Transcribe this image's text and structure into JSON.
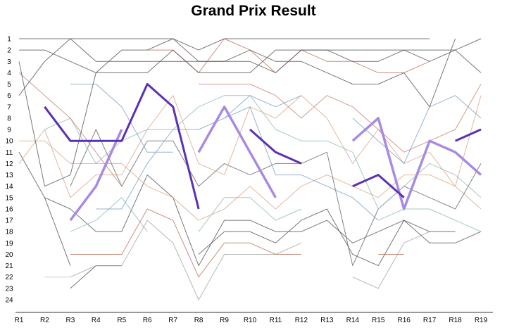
{
  "chart_data": {
    "type": "line",
    "title": "Grand Prix Result",
    "xlabel": "",
    "ylabel": "",
    "categories": [
      "R1",
      "R2",
      "R3",
      "R4",
      "R5",
      "R6",
      "R7",
      "R8",
      "R9",
      "R10",
      "R11",
      "R12",
      "R13",
      "R14",
      "R15",
      "R16",
      "R17",
      "R18",
      "R19"
    ],
    "y_ticks": [
      "1",
      "2",
      "3",
      "4",
      "5",
      "6",
      "7",
      "8",
      "9",
      "10",
      "11",
      "12",
      "13",
      "14",
      "15",
      "16",
      "17",
      "18",
      "19",
      "20",
      "21",
      "22",
      "23",
      "24"
    ],
    "ylim": [
      24,
      1
    ],
    "y_inverted": true,
    "grid": false,
    "legend": "none",
    "series": [
      {
        "color": "#5b31b5",
        "width": 3,
        "opacity": 1,
        "values": [
          null,
          7,
          10,
          10,
          10,
          5,
          7,
          16,
          null,
          9,
          11,
          12,
          null,
          14,
          13,
          15,
          null,
          10,
          9
        ]
      },
      {
        "color": "#a98ae3",
        "width": 3.5,
        "opacity": 1,
        "values": [
          null,
          null,
          17,
          14,
          9,
          null,
          null,
          11,
          7,
          11,
          15,
          null,
          null,
          10,
          8,
          16,
          10,
          11,
          13
        ]
      },
      {
        "color": "#555555",
        "width": 1,
        "opacity": 0.8,
        "values": [
          1,
          1,
          1,
          1,
          1,
          1,
          1,
          2,
          1,
          1,
          1,
          1,
          1,
          1,
          1,
          1,
          1,
          null,
          null
        ]
      },
      {
        "color": "#555555",
        "width": 1,
        "opacity": 0.8,
        "values": [
          2,
          2,
          3,
          4,
          4,
          4,
          2,
          4,
          4,
          4,
          2,
          2,
          2,
          2,
          2,
          2,
          3,
          2,
          1
        ]
      },
      {
        "color": "#555555",
        "width": 1,
        "opacity": 0.8,
        "values": [
          6,
          3,
          1,
          3,
          3,
          3,
          3,
          3,
          3,
          3,
          4,
          2,
          2,
          3,
          3,
          2,
          2,
          2,
          4
        ]
      },
      {
        "color": "#555555",
        "width": 1,
        "opacity": 0.8,
        "values": [
          3,
          14,
          13,
          4,
          2,
          2,
          1,
          3,
          3,
          2,
          3,
          3,
          4,
          5,
          5,
          4,
          7,
          1,
          null
        ]
      },
      {
        "color": "#c0705e",
        "width": 1,
        "opacity": 0.8,
        "values": [
          null,
          null,
          null,
          null,
          null,
          2,
          2,
          4,
          1,
          2,
          4,
          2,
          3,
          3,
          4,
          4,
          3,
          null,
          null
        ]
      },
      {
        "color": "#c0705e",
        "width": 1,
        "opacity": 0.7,
        "values": [
          4,
          6,
          8,
          11,
          14,
          null,
          null,
          5,
          5,
          5,
          6,
          8,
          6,
          7,
          9,
          11,
          10,
          9,
          5
        ]
      },
      {
        "color": "#7a9fc4",
        "width": 1,
        "opacity": 0.8,
        "values": [
          null,
          null,
          5,
          5,
          7,
          11,
          11,
          null,
          8,
          6,
          7,
          6,
          null,
          8,
          10,
          12,
          7,
          6,
          8
        ]
      },
      {
        "color": "#8fbab8",
        "width": 1,
        "opacity": 0.8,
        "values": [
          null,
          9,
          8,
          12,
          10,
          9,
          9,
          7,
          6,
          6,
          9,
          10,
          10,
          11,
          16,
          14,
          12,
          13,
          15
        ]
      },
      {
        "color": "#d9a68a",
        "width": 1,
        "opacity": 0.8,
        "values": [
          12,
          9,
          15,
          13,
          13,
          9,
          6,
          12,
          13,
          7,
          8,
          6,
          8,
          12,
          9,
          12,
          11,
          14,
          6
        ]
      },
      {
        "color": "#7a9fc4",
        "width": 1,
        "opacity": 0.8,
        "values": [
          null,
          null,
          null,
          16,
          16,
          12,
          9,
          9,
          8,
          7,
          13,
          13,
          14,
          15,
          17,
          null,
          null,
          null,
          14
        ]
      },
      {
        "color": "#666666",
        "width": 1,
        "opacity": 0.8,
        "values": [
          null,
          null,
          14,
          9,
          14,
          10,
          10,
          14,
          12,
          13,
          12,
          12,
          11,
          21,
          16,
          14,
          15,
          16,
          12
        ]
      },
      {
        "color": "#d9a68a",
        "width": 1,
        "opacity": 0.8,
        "values": [
          10,
          10,
          12,
          12,
          12,
          14,
          15,
          17,
          16,
          14,
          16,
          14,
          13,
          14,
          15,
          13,
          13,
          14,
          16
        ]
      },
      {
        "color": "#8fbab8",
        "width": 1,
        "opacity": 0.8,
        "values": [
          null,
          null,
          18,
          17,
          15,
          18,
          null,
          18,
          15,
          15,
          17,
          16,
          null,
          null,
          17,
          16,
          16,
          17,
          18
        ]
      },
      {
        "color": "#555555",
        "width": 1,
        "opacity": 0.8,
        "values": [
          null,
          15,
          16,
          18,
          18,
          13,
          15,
          21,
          17,
          17,
          18,
          18,
          17,
          19,
          18,
          17,
          18,
          18,
          null
        ]
      },
      {
        "color": "#555555",
        "width": 1,
        "opacity": 0.8,
        "values": [
          11,
          15,
          21,
          null,
          null,
          null,
          null,
          20,
          18,
          18,
          19,
          17,
          16,
          20,
          21,
          17,
          19,
          19,
          18
        ]
      },
      {
        "color": "#c0705e",
        "width": 1,
        "opacity": 0.8,
        "values": [
          null,
          null,
          20,
          20,
          20,
          16,
          17,
          22,
          19,
          19,
          20,
          20,
          null,
          null,
          20,
          20,
          null,
          null,
          null
        ]
      },
      {
        "color": "#999999",
        "width": 1,
        "opacity": 0.7,
        "values": [
          null,
          null,
          22,
          21,
          21,
          17,
          19,
          24,
          20,
          20,
          20,
          19,
          null,
          22,
          23,
          19,
          18,
          null,
          null
        ]
      },
      {
        "color": "#bbbbbb",
        "width": 1,
        "opacity": 0.7,
        "values": [
          null,
          22,
          22,
          null,
          null,
          null,
          null,
          23,
          null,
          null,
          null,
          null,
          null,
          null,
          22,
          null,
          null,
          null,
          null
        ]
      },
      {
        "color": "#555555",
        "width": 1,
        "opacity": 0.8,
        "values": [
          null,
          null,
          23,
          21,
          21,
          null,
          null,
          null,
          null,
          null,
          null,
          null,
          null,
          null,
          null,
          null,
          null,
          null,
          null
        ]
      }
    ]
  }
}
